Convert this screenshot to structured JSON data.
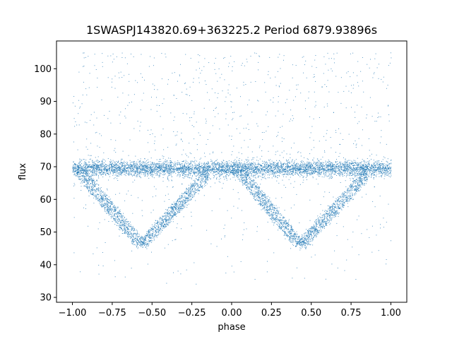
{
  "chart_data": {
    "type": "scatter",
    "title": "1SWASPJ143820.69+363225.2 Period 6879.93896s",
    "xlabel": "phase",
    "ylabel": "flux",
    "xlim": [
      -1.1,
      1.1
    ],
    "ylim": [
      28.5,
      108.5
    ],
    "xticks": [
      -1.0,
      -0.75,
      -0.5,
      -0.25,
      0.0,
      0.25,
      0.5,
      0.75,
      1.0
    ],
    "xtick_labels": [
      "−1.00",
      "−0.75",
      "−0.50",
      "−0.25",
      "0.00",
      "0.25",
      "0.50",
      "0.75",
      "1.00"
    ],
    "yticks": [
      30,
      40,
      50,
      60,
      70,
      80,
      90,
      100
    ],
    "ytick_labels": [
      "30",
      "40",
      "50",
      "60",
      "70",
      "80",
      "90",
      "100"
    ],
    "grid": false,
    "legend": "none",
    "marker_color": "#1f77b4",
    "series": [
      {
        "description_values": {
          "phase_range": [
            -1.0,
            1.0
          ],
          "baseline_flux": 69.5,
          "eclipse_minima_phase": [
            -0.6,
            0.4
          ],
          "eclipse_minimum_flux": 46,
          "eclipse_ingress_start_phase": [
            -1.0,
            0.0
          ],
          "eclipse_egress_end_phase": [
            -0.15,
            0.85
          ],
          "eclipse_branch_offsets": [
            0,
            2.5,
            5
          ],
          "outlier_flux_range": [
            32,
            105
          ]
        }
      }
    ]
  }
}
